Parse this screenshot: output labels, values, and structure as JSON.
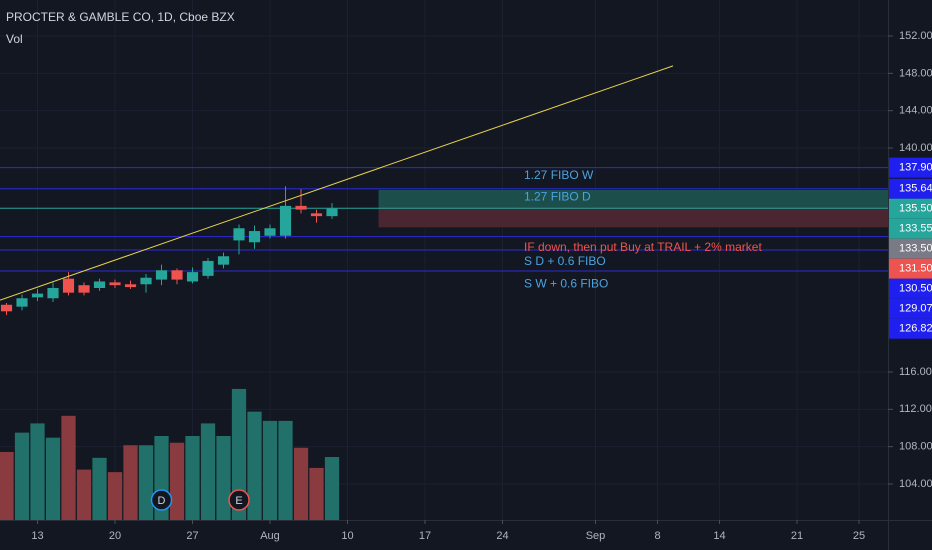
{
  "chart_data": {
    "type": "candlestick",
    "title": "PROCTER & GAMBLE CO, 1D, Cboe BZX",
    "subtitle": "Vol",
    "x": [
      0,
      1,
      2,
      3,
      4,
      5,
      6,
      7,
      8,
      9,
      10,
      11,
      12,
      13,
      14,
      15,
      16,
      17,
      18,
      19,
      20,
      21
    ],
    "open": [
      123.2,
      123.0,
      124.0,
      123.9,
      126.0,
      125.3,
      125.0,
      125.6,
      125.4,
      125.4,
      125.9,
      126.9,
      125.7,
      126.3,
      127.5,
      130.1,
      129.9,
      130.6,
      130.6,
      133.8,
      133.0,
      132.7
    ],
    "high": [
      123.4,
      124.3,
      124.9,
      125.6,
      126.7,
      125.6,
      126.0,
      125.9,
      125.8,
      126.5,
      127.5,
      127.1,
      127.2,
      128.2,
      128.8,
      131.8,
      131.7,
      131.8,
      135.9,
      135.6,
      133.4,
      134.1
    ],
    "low": [
      122.1,
      122.6,
      123.6,
      123.5,
      124.2,
      124.2,
      124.7,
      125.0,
      124.9,
      124.5,
      125.3,
      125.4,
      125.5,
      126.0,
      127.1,
      128.6,
      129.2,
      130.3,
      130.3,
      133.0,
      132.0,
      132.4
    ],
    "close": [
      122.5,
      123.9,
      124.4,
      125.0,
      124.5,
      124.5,
      125.7,
      125.3,
      125.1,
      126.1,
      126.9,
      125.9,
      126.7,
      127.9,
      128.4,
      131.4,
      131.1,
      131.4,
      133.8,
      133.4,
      132.7,
      133.5
    ],
    "volume": [
      8.1,
      10.4,
      11.5,
      9.8,
      12.4,
      6.0,
      7.4,
      5.7,
      8.9,
      8.9,
      10.0,
      9.2,
      10.0,
      11.5,
      10.0,
      15.6,
      12.9,
      11.8,
      11.8,
      8.6,
      6.2,
      7.5
    ],
    "up_color": "#26a69a",
    "down_color": "#ef5350",
    "volume_up_color": "#22706a",
    "volume_down_color": "#8a3b3f",
    "xlim": [
      -0.42,
      56.87
    ],
    "xticks": [
      {
        "value": 2,
        "label": "13"
      },
      {
        "value": 7,
        "label": "20"
      },
      {
        "value": 12,
        "label": "27"
      },
      {
        "value": 17,
        "label": "Aug"
      },
      {
        "value": 22,
        "label": "10"
      },
      {
        "value": 27,
        "label": "17"
      },
      {
        "value": 32,
        "label": "24"
      },
      {
        "value": 38,
        "label": "Sep"
      },
      {
        "value": 42,
        "label": "8"
      },
      {
        "value": 46,
        "label": "14"
      },
      {
        "value": 51,
        "label": "21"
      },
      {
        "value": 55,
        "label": "25"
      }
    ],
    "ylim": [
      100.14,
      155.86
    ],
    "yticks": [
      {
        "value": 104,
        "label": "104.00"
      },
      {
        "value": 108,
        "label": "108.00"
      },
      {
        "value": 112,
        "label": "112.00"
      },
      {
        "value": 116,
        "label": "116.00"
      },
      {
        "value": 140,
        "label": "140.00"
      },
      {
        "value": 144,
        "label": "144.00"
      },
      {
        "value": 148,
        "label": "148.00"
      },
      {
        "value": 152,
        "label": "152.00"
      }
    ],
    "volume_ylim": [
      0,
      61.9
    ],
    "grid": true,
    "horizontal_lines": [
      {
        "value": 137.9,
        "color": "#2b2bd6"
      },
      {
        "value": 135.64,
        "color": "#2b2bd6"
      },
      {
        "value": 133.55,
        "color": "#26a69a"
      },
      {
        "value": 130.5,
        "color": "#2b2bd6"
      },
      {
        "value": 129.07,
        "color": "#2b2bd6"
      },
      {
        "value": 126.82,
        "color": "#2b2bd6"
      }
    ],
    "position_boxes": [
      {
        "x_start": 24,
        "top": 135.5,
        "bottom": 133.55,
        "color": "#1c4f4b"
      },
      {
        "x_start": 24,
        "top": 133.55,
        "bottom": 131.5,
        "color": "#4a2630"
      }
    ],
    "trend_line": {
      "x": [
        -0.42,
        43.0
      ],
      "y": [
        123.7,
        148.8
      ],
      "color": "#e8d44d"
    },
    "price_labels": [
      {
        "value": 137.9,
        "label": "137.90",
        "color": "#1f1fef"
      },
      {
        "value": 135.64,
        "label": "135.64",
        "color": "#1f1fef"
      },
      {
        "value": 135.5,
        "label": "135.50",
        "color": "#26a69a"
      },
      {
        "value": 133.55,
        "label": "133.55",
        "color": "#26a69a"
      },
      {
        "value": 133.5,
        "label": "133.50",
        "color": "#787b86"
      },
      {
        "value": 131.5,
        "label": "131.50",
        "color": "#ef5350"
      },
      {
        "value": 130.5,
        "label": "130.50",
        "color": "#1f1fef"
      },
      {
        "value": 129.07,
        "label": "129.07",
        "color": "#1f1fef"
      },
      {
        "value": 126.82,
        "label": "126.82",
        "color": "#1f1fef"
      }
    ],
    "annotations": [
      {
        "text": "1.27 FIBO W",
        "x": 29,
        "y": 137.0,
        "color": "#4aa3df"
      },
      {
        "text": "1.27 FIBO D",
        "x": 29,
        "y": 134.7,
        "color": "#4aa3df"
      },
      {
        "text": "IF down, then put Buy at TRAIL + 2% market",
        "x": 29,
        "y": 129.3,
        "color": "#ef5350"
      },
      {
        "text": "S D + 0.6 FIBO",
        "x": 29,
        "y": 127.8,
        "color": "#4aa3df"
      },
      {
        "text": "S W + 0.6 FIBO",
        "x": 29,
        "y": 125.4,
        "color": "#4aa3df"
      }
    ],
    "events": [
      {
        "label": "D",
        "x": 10,
        "color": "#2196f3"
      },
      {
        "label": "E",
        "x": 15,
        "color": "#ef5350"
      }
    ]
  }
}
